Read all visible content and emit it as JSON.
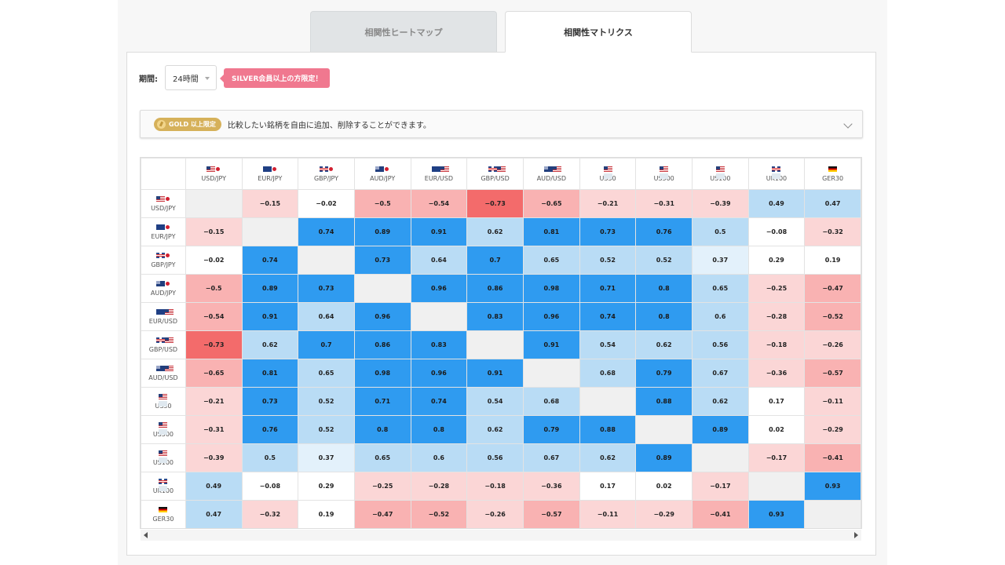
{
  "tabs": [
    {
      "label": "相関性ヒートマップ",
      "active": false
    },
    {
      "label": "相関性マトリクス",
      "active": true
    }
  ],
  "filter": {
    "period_label": "期間:",
    "period_value": "24時間",
    "silver_notice": "SILVER会員以上の方限定！"
  },
  "notice": {
    "badge": "GOLD 以上限定",
    "text": "比較したい銘柄を自由に追加、削除することができます。"
  },
  "colors": {
    "strong_positive": "#2f9bf0",
    "weak_positive": "#b9dcf5",
    "faint_positive": "#e3f1fb",
    "strong_negative": "#f36b6b",
    "weak_negative": "#fbd6d6",
    "mid_negative": "#f9b2b2",
    "diagonal": "#f0f0f0"
  },
  "symbols": [
    {
      "label": "USD/JPY",
      "flags": [
        "us",
        "jp"
      ]
    },
    {
      "label": "EUR/JPY",
      "flags": [
        "eu",
        "jp"
      ]
    },
    {
      "label": "GBP/JPY",
      "flags": [
        "gb",
        "jp"
      ]
    },
    {
      "label": "AUD/JPY",
      "flags": [
        "au",
        "jp"
      ]
    },
    {
      "label": "EUR/USD",
      "flags": [
        "eu",
        "us"
      ]
    },
    {
      "label": "GBP/USD",
      "flags": [
        "gb",
        "us"
      ]
    },
    {
      "label": "AUD/USD",
      "flags": [
        "au",
        "us"
      ]
    },
    {
      "label": "US30",
      "flags": [
        "us"
      ]
    },
    {
      "label": "US500",
      "flags": [
        "us"
      ]
    },
    {
      "label": "US100",
      "flags": [
        "us"
      ]
    },
    {
      "label": "UK100",
      "flags": [
        "gb"
      ]
    },
    {
      "label": "GER30",
      "flags": [
        "de"
      ]
    }
  ],
  "matrix": [
    [
      null,
      -0.15,
      -0.02,
      -0.5,
      -0.54,
      -0.73,
      -0.65,
      -0.21,
      -0.31,
      -0.39,
      0.49,
      0.47
    ],
    [
      -0.15,
      null,
      0.74,
      0.89,
      0.91,
      0.62,
      0.81,
      0.73,
      0.76,
      0.5,
      -0.08,
      -0.32
    ],
    [
      -0.02,
      0.74,
      null,
      0.73,
      0.64,
      0.7,
      0.65,
      0.52,
      0.52,
      0.37,
      0.29,
      0.19
    ],
    [
      -0.5,
      0.89,
      0.73,
      null,
      0.96,
      0.86,
      0.98,
      0.71,
      0.8,
      0.65,
      -0.25,
      -0.47
    ],
    [
      -0.54,
      0.91,
      0.64,
      0.96,
      null,
      0.83,
      0.96,
      0.74,
      0.8,
      0.6,
      -0.28,
      -0.52
    ],
    [
      -0.73,
      0.62,
      0.7,
      0.86,
      0.83,
      null,
      0.91,
      0.54,
      0.62,
      0.56,
      -0.18,
      -0.26
    ],
    [
      -0.65,
      0.81,
      0.65,
      0.98,
      0.96,
      0.91,
      null,
      0.68,
      0.79,
      0.67,
      -0.36,
      -0.57
    ],
    [
      -0.21,
      0.73,
      0.52,
      0.71,
      0.74,
      0.54,
      0.68,
      null,
      0.88,
      0.62,
      0.17,
      -0.11
    ],
    [
      -0.31,
      0.76,
      0.52,
      0.8,
      0.8,
      0.62,
      0.79,
      0.88,
      null,
      0.89,
      0.02,
      -0.29
    ],
    [
      -0.39,
      0.5,
      0.37,
      0.65,
      0.6,
      0.56,
      0.67,
      0.62,
      0.89,
      null,
      -0.17,
      -0.41
    ],
    [
      0.49,
      -0.08,
      0.29,
      -0.25,
      -0.28,
      -0.18,
      -0.36,
      0.17,
      0.02,
      -0.17,
      null,
      0.93
    ],
    [
      0.47,
      -0.32,
      0.19,
      -0.47,
      -0.52,
      -0.26,
      -0.57,
      -0.11,
      -0.29,
      -0.41,
      0.93,
      null
    ]
  ]
}
